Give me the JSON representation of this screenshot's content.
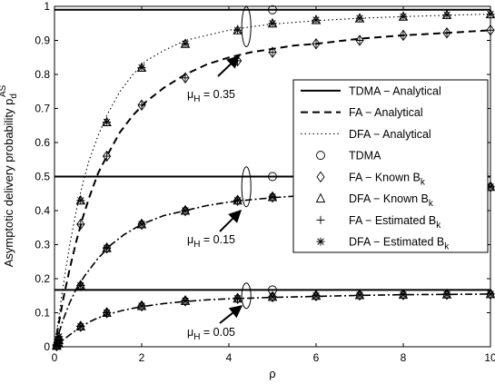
{
  "chart_data": {
    "type": "line",
    "xlabel": "ρ",
    "ylabel": "Asymptotic delivery probability p",
    "ylabel_sub": "d",
    "ylabel_sup": "AS",
    "xlim": [
      0,
      10
    ],
    "ylim": [
      0,
      1
    ],
    "xticks": [
      0,
      2,
      4,
      6,
      8,
      10
    ],
    "yticks": [
      0,
      0.1,
      0.2,
      0.3,
      0.4,
      0.5,
      0.6,
      0.7,
      0.8,
      0.9,
      1
    ],
    "grid": false,
    "legend_position": "right",
    "legend": [
      {
        "label": "TDMA − Analytical",
        "line": "solid",
        "marker": "none"
      },
      {
        "label": "FA − Analytical",
        "line": "dashed",
        "marker": "none"
      },
      {
        "label": "DFA − Analytical",
        "line": "dotted",
        "marker": "none"
      },
      {
        "label": "TDMA",
        "line": "none",
        "marker": "circle"
      },
      {
        "label": "FA − Known B",
        "sub": "k",
        "line": "none",
        "marker": "diamond"
      },
      {
        "label": "DFA − Known B",
        "sub": "k",
        "line": "none",
        "marker": "triangle"
      },
      {
        "label": "FA − Estimated B",
        "sub": "k",
        "line": "none",
        "marker": "plus"
      },
      {
        "label": "DFA − Estimated B",
        "sub": "k",
        "line": "none",
        "marker": "asterisk"
      }
    ],
    "annotations": [
      {
        "text": "μ",
        "sub": "H",
        "value": " = 0.35",
        "at_x": 4.4,
        "at_y": 0.94
      },
      {
        "text": "μ",
        "sub": "H",
        "value": " = 0.15",
        "at_x": 4.4,
        "at_y": 0.47
      },
      {
        "text": "μ",
        "sub": "H",
        "value": " = 0.05",
        "at_x": 4.4,
        "at_y": 0.15
      }
    ],
    "groups": [
      {
        "mu_H": 0.35,
        "tdma_value": 0.99,
        "tdma_marker": {
          "x": 5,
          "y": 0.99
        },
        "fa_limit": 0.965,
        "dfa_limit": 0.985,
        "fa_curve_x": [
          0,
          0.1,
          0.2,
          0.35,
          0.5,
          0.65,
          0.8,
          1.0,
          1.2,
          1.5,
          1.8,
          2.1,
          2.5,
          3.0,
          3.5,
          4.0,
          4.5,
          5.0,
          5.5,
          6.0,
          7.0,
          8.0,
          9.0,
          10.0
        ],
        "fa_curve_y": [
          0,
          0.07,
          0.14,
          0.23,
          0.31,
          0.38,
          0.44,
          0.51,
          0.56,
          0.63,
          0.68,
          0.72,
          0.76,
          0.8,
          0.83,
          0.85,
          0.865,
          0.875,
          0.885,
          0.89,
          0.905,
          0.915,
          0.922,
          0.93
        ],
        "dfa_curve_x": [
          0,
          0.1,
          0.2,
          0.35,
          0.5,
          0.65,
          0.8,
          1.0,
          1.2,
          1.5,
          1.8,
          2.1,
          2.5,
          3.0,
          3.5,
          4.0,
          4.5,
          5.0,
          6.0,
          7.0,
          8.0,
          9.0,
          10.0
        ],
        "dfa_curve_y": [
          0,
          0.09,
          0.18,
          0.3,
          0.4,
          0.48,
          0.55,
          0.62,
          0.68,
          0.75,
          0.8,
          0.84,
          0.87,
          0.9,
          0.915,
          0.93,
          0.94,
          0.948,
          0.958,
          0.965,
          0.97,
          0.974,
          0.977
        ],
        "fa_points_x": [
          0.05,
          0.1,
          0.6,
          1.2,
          2,
          3,
          4.2,
          5,
          6,
          7,
          8,
          9,
          10
        ],
        "fa_points_y": [
          0.005,
          0.02,
          0.36,
          0.56,
          0.71,
          0.79,
          0.84,
          0.865,
          0.89,
          0.9,
          0.915,
          0.922,
          0.93
        ],
        "dfa_points_x": [
          0.05,
          0.1,
          0.6,
          1.2,
          2,
          3,
          4.2,
          5,
          6,
          7,
          8,
          9,
          10
        ],
        "dfa_points_y": [
          0.005,
          0.03,
          0.43,
          0.66,
          0.82,
          0.89,
          0.93,
          0.95,
          0.96,
          0.965,
          0.97,
          0.975,
          0.977
        ]
      },
      {
        "mu_H": 0.15,
        "tdma_value": 0.5,
        "tdma_marker": {
          "x": 5,
          "y": 0.5
        },
        "fa_curve_x": [
          0,
          0.1,
          0.2,
          0.35,
          0.5,
          0.7,
          1.0,
          1.3,
          1.6,
          2.0,
          2.5,
          3.0,
          3.5,
          4.0,
          4.5,
          5.0,
          6.0,
          7.0,
          8.0,
          9.0,
          10.0
        ],
        "fa_curve_y": [
          0,
          0.04,
          0.08,
          0.13,
          0.17,
          0.21,
          0.26,
          0.3,
          0.33,
          0.36,
          0.385,
          0.4,
          0.415,
          0.425,
          0.432,
          0.438,
          0.447,
          0.455,
          0.46,
          0.465,
          0.468
        ],
        "fa_points_x": [
          0.05,
          0.1,
          0.6,
          1.2,
          2,
          3,
          4.2,
          5,
          6,
          7,
          8,
          9,
          10
        ],
        "fa_points_y": [
          0.005,
          0.02,
          0.18,
          0.29,
          0.36,
          0.4,
          0.43,
          0.44,
          0.45,
          0.455,
          0.46,
          0.465,
          0.47
        ]
      },
      {
        "mu_H": 0.05,
        "tdma_value": 0.167,
        "tdma_marker": {
          "x": 5,
          "y": 0.167
        },
        "fa_curve_x": [
          0,
          0.2,
          0.4,
          0.6,
          0.8,
          1.0,
          1.3,
          1.6,
          2.0,
          2.5,
          3.0,
          3.5,
          4.0,
          4.5,
          5.0,
          6.0,
          7.0,
          8.0,
          9.0,
          10.0
        ],
        "fa_curve_y": [
          0,
          0.02,
          0.04,
          0.058,
          0.073,
          0.085,
          0.098,
          0.108,
          0.118,
          0.127,
          0.133,
          0.138,
          0.141,
          0.143,
          0.145,
          0.148,
          0.151,
          0.153,
          0.154,
          0.155
        ],
        "fa_points_x": [
          0.05,
          0.1,
          0.6,
          1.2,
          2,
          3,
          4.2,
          5,
          6,
          7,
          8,
          9,
          10
        ],
        "fa_points_y": [
          0.003,
          0.01,
          0.06,
          0.1,
          0.12,
          0.135,
          0.142,
          0.147,
          0.15,
          0.152,
          0.153,
          0.154,
          0.155
        ]
      }
    ]
  }
}
